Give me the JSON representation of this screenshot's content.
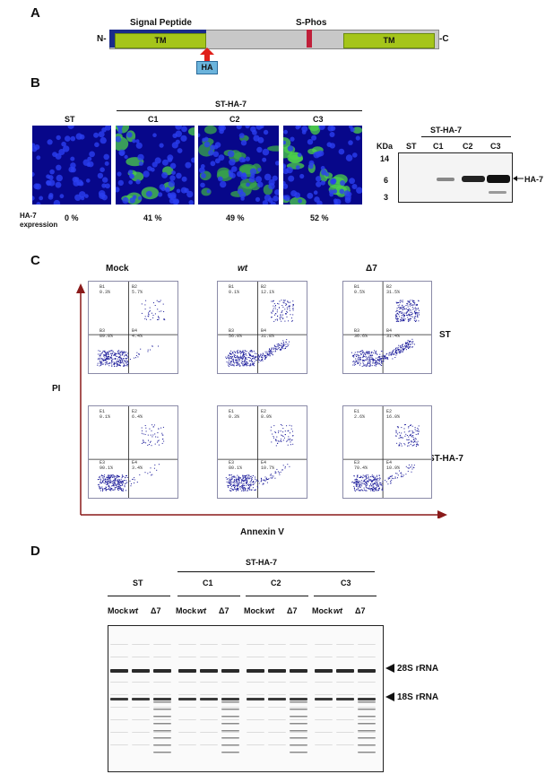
{
  "panel_a": {
    "letter": "A",
    "n_term": "N-",
    "c_term": "-C",
    "signal_peptide": "Signal Peptide",
    "s_phos": "S-Phos",
    "tm1": "TM",
    "tm2": "TM",
    "ha_tag": "HA",
    "colors": {
      "bar": "#c8c8c8",
      "tm": "#a5c51a",
      "signal": "#1a2b8a",
      "phos": "#c0203a",
      "ha": "#6bb4dc",
      "arrow": "#e0201a"
    }
  },
  "panel_b": {
    "letter": "B",
    "group_label": "ST-HA-7",
    "images": [
      {
        "label": "ST",
        "expression": "0 %"
      },
      {
        "label": "C1",
        "expression": "41 %"
      },
      {
        "label": "C2",
        "expression": "49 %"
      },
      {
        "label": "C3",
        "expression": "52 %"
      }
    ],
    "expression_label": "HA-7\nexpression",
    "blot": {
      "kda_label": "KDa",
      "group_label": "ST-HA-7",
      "lanes": [
        "ST",
        "C1",
        "C2",
        "C3"
      ],
      "markers": [
        "14",
        "6",
        "3"
      ],
      "band_label": "HA-7"
    }
  },
  "panel_c": {
    "letter": "C",
    "columns": [
      "Mock",
      "wt",
      "Δ7"
    ],
    "rows": [
      "ST",
      "ST-HA-7"
    ],
    "y_axis": "PI",
    "x_axis": "Annexin V",
    "plots": [
      {
        "ul": "B1\n0.3%",
        "ur": "B2\n5.7%",
        "ll": "B3\n89.8%",
        "lr": "B4\n4.4%"
      },
      {
        "ul": "B1\n0.1%",
        "ur": "B2\n12.1%",
        "ll": "B3\n56.0%",
        "lr": "B4\n31.8%"
      },
      {
        "ul": "B1\n0.5%",
        "ur": "B2\n31.5%",
        "ll": "B3\n36.6%",
        "lr": "B4\n31.4%"
      },
      {
        "ul": "E1\n0.1%",
        "ur": "E2\n6.4%",
        "ll": "E3\n90.1%",
        "lr": "E4\n3.4%"
      },
      {
        "ul": "E1\n0.3%",
        "ur": "E2\n8.9%",
        "ll": "E3\n80.1%",
        "lr": "E4\n10.7%"
      },
      {
        "ul": "E1\n2.6%",
        "ur": "E2\n16.0%",
        "ll": "E3\n70.4%",
        "lr": "E4\n10.9%"
      }
    ]
  },
  "panel_d": {
    "letter": "D",
    "group_label": "ST-HA-7",
    "groups": [
      "ST",
      "C1",
      "C2",
      "C3"
    ],
    "lane_labels": [
      "Mock",
      "wt",
      "Δ7"
    ],
    "band_28s": "28S rRNA",
    "band_18s": "18S rRNA"
  }
}
